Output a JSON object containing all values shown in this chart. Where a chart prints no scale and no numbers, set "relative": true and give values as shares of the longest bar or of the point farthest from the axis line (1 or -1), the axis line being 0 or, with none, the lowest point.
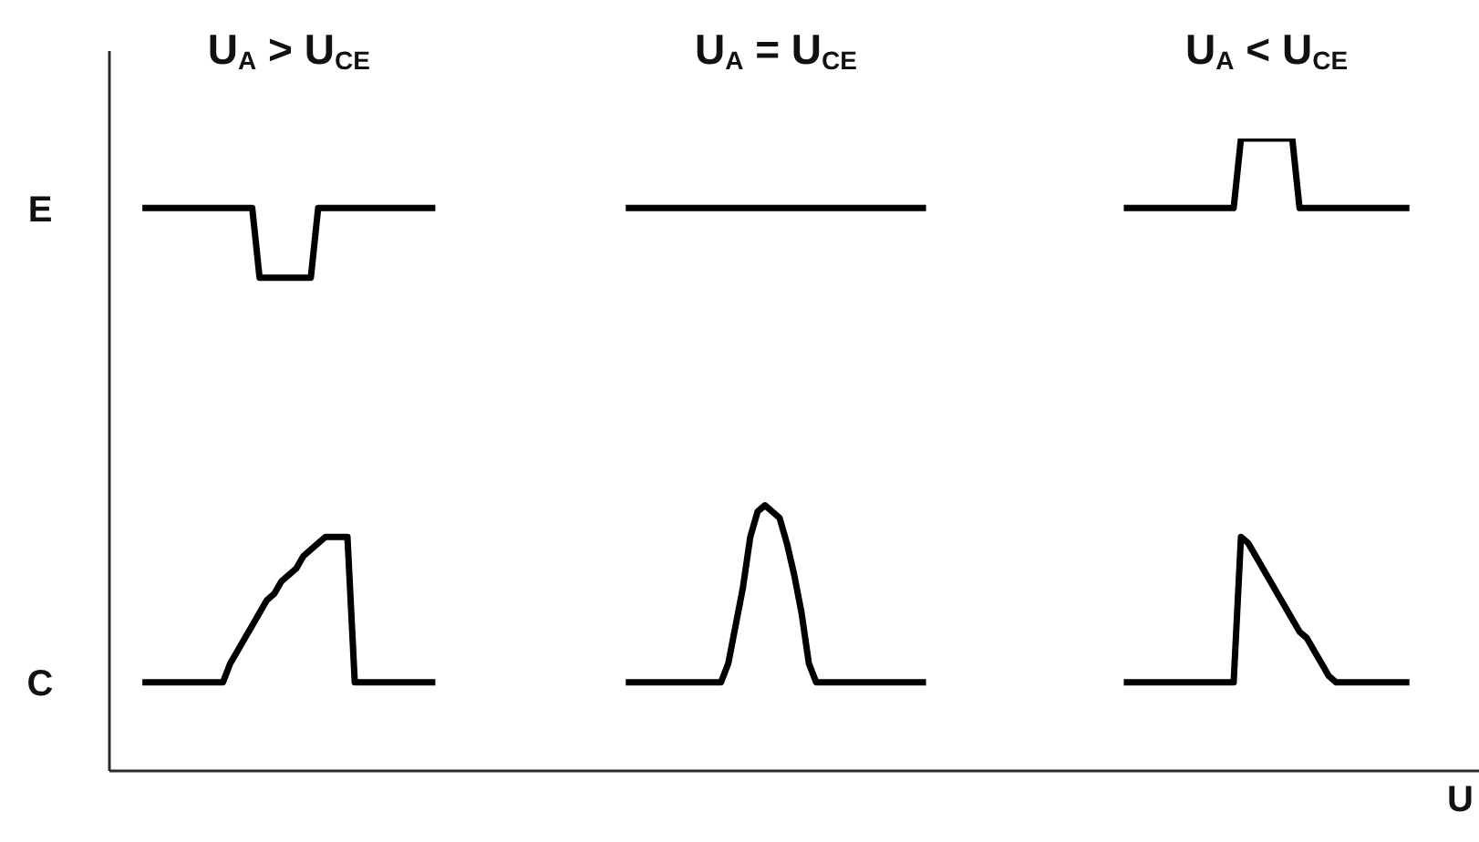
{
  "chart_data": {
    "type": "line",
    "relative": true,
    "xlabel": "U",
    "marker": "none",
    "line_style": "solid",
    "annotations": [
      "U$_{A}$ > U$_{CE}$",
      "U$_{A}$ = U$_{CE}$",
      "U$_{A}$ < U$_{CE}$"
    ],
    "categories": [
      null,
      null,
      null,
      null,
      null,
      null,
      null,
      null,
      null,
      null,
      null,
      null,
      null,
      null,
      null,
      null,
      null,
      null,
      null,
      null,
      null,
      null,
      null,
      null,
      null,
      null,
      null,
      null,
      null,
      null,
      null,
      null,
      null,
      null,
      null,
      null,
      null,
      null,
      null,
      null,
      null,
      null,
      null,
      null,
      null,
      null,
      null,
      null,
      null,
      null,
      null,
      null,
      null,
      null,
      null,
      null,
      null,
      null,
      null,
      null,
      null,
      null,
      null,
      null,
      null,
      null,
      null,
      null,
      null,
      null,
      null,
      null,
      null,
      null,
      null,
      null,
      null,
      null,
      null,
      null,
      null,
      null,
      null,
      null,
      null,
      null,
      null,
      null,
      null,
      null,
      null,
      null,
      null,
      null,
      null,
      null,
      null,
      null,
      null,
      null,
      null,
      null,
      null,
      null,
      null,
      null,
      null,
      null,
      null,
      null,
      null,
      null,
      null,
      null,
      null,
      null,
      null,
      null,
      null,
      null,
      null,
      null,
      null,
      null,
      null,
      null,
      null,
      null,
      null,
      null,
      null,
      null,
      null,
      null,
      null,
      null,
      null,
      null,
      null,
      null,
      null,
      null,
      null,
      null,
      null,
      null,
      null,
      null,
      null,
      null,
      null,
      null,
      null,
      null,
      null,
      null,
      null,
      null,
      null,
      null,
      null,
      null,
      null,
      null,
      null,
      null,
      null,
      null,
      null,
      null,
      null,
      null,
      null,
      null,
      null,
      null,
      null,
      null,
      null,
      null,
      null,
      null,
      null,
      null,
      null,
      null,
      null
    ],
    "series": [
      {
        "name": "E",
        "color": "#000000",
        "values": [
          null,
          null,
          null,
          null,
          0.89,
          0.89,
          0.89,
          0.89,
          0.89,
          0.89,
          0.89,
          0.89,
          0.89,
          0.89,
          0.89,
          0.89,
          0.89,
          0.89,
          0.89,
          0.89,
          0.78,
          0.78,
          0.78,
          0.78,
          0.78,
          0.78,
          0.78,
          0.78,
          0.89,
          0.89,
          0.89,
          0.89,
          0.89,
          0.89,
          0.89,
          0.89,
          0.89,
          0.89,
          0.89,
          0.89,
          0.89,
          0.89,
          0.89,
          0.89,
          0.89,
          null,
          null,
          null,
          null,
          null,
          null,
          null,
          null,
          null,
          null,
          null,
          null,
          null,
          null,
          null,
          null,
          null,
          null,
          null,
          null,
          null,
          null,
          null,
          null,
          null,
          null,
          null,
          null,
          null,
          null,
          null,
          null,
          null,
          null,
          null,
          null,
          null,
          null,
          null,
          null,
          null,
          null,
          null,
          null,
          null,
          null,
          null,
          null,
          null,
          null,
          null,
          null,
          null,
          null,
          null,
          null,
          null,
          null,
          null,
          null,
          null,
          null,
          null,
          null,
          null,
          null,
          null,
          null,
          null,
          null,
          null,
          null,
          null,
          null,
          null,
          null,
          null,
          null,
          null,
          null,
          null,
          null,
          null,
          null,
          null,
          null,
          null,
          null,
          null,
          null,
          null,
          null,
          null,
          null,
          null,
          null,
          null,
          null,
          null,
          null,
          null,
          null,
          null,
          null,
          null,
          null,
          null,
          null,
          null,
          null,
          null,
          null,
          null,
          null,
          null,
          null,
          null,
          null,
          null,
          null,
          null,
          null,
          null,
          null,
          null,
          null,
          null,
          null,
          null,
          null,
          null,
          null,
          null,
          null,
          null,
          null,
          null,
          null,
          null,
          null,
          null,
          null
        ]
      },
      {
        "color": "#000000",
        "values": [
          null,
          null,
          null,
          null,
          null,
          null,
          null,
          null,
          null,
          null,
          null,
          null,
          null,
          null,
          null,
          null,
          null,
          null,
          null,
          null,
          null,
          null,
          null,
          null,
          null,
          null,
          null,
          null,
          null,
          null,
          null,
          null,
          null,
          null,
          null,
          null,
          null,
          null,
          null,
          null,
          null,
          null,
          null,
          null,
          null,
          null,
          null,
          null,
          null,
          null,
          null,
          null,
          null,
          null,
          null,
          null,
          null,
          null,
          null,
          null,
          null,
          null,
          null,
          null,
          null,
          null,
          null,
          null,
          null,
          null,
          0.89,
          0.89,
          0.89,
          0.89,
          0.89,
          0.89,
          0.89,
          0.89,
          0.89,
          0.89,
          0.89,
          0.89,
          0.89,
          0.89,
          0.89,
          0.89,
          0.89,
          0.89,
          0.89,
          0.89,
          0.89,
          0.89,
          0.89,
          0.89,
          0.89,
          0.89,
          0.89,
          0.89,
          0.89,
          0.89,
          0.89,
          0.89,
          0.89,
          0.89,
          0.89,
          0.89,
          0.89,
          0.89,
          0.89,
          0.89,
          0.89,
          0.89,
          null,
          null,
          null,
          null,
          null,
          null,
          null,
          null,
          null,
          null,
          null,
          null,
          null,
          null,
          null,
          null,
          null,
          null,
          null,
          null,
          null,
          null,
          null,
          null,
          null,
          null,
          null,
          null,
          null,
          null,
          null,
          null,
          null,
          null,
          null,
          null,
          null,
          null,
          null,
          null,
          null,
          null,
          null,
          null,
          null,
          null,
          null,
          null,
          null,
          null,
          null,
          null,
          null,
          null,
          null,
          null,
          null,
          null,
          null,
          null,
          null,
          null,
          null,
          null,
          null,
          null,
          null,
          null,
          null,
          null,
          null,
          null,
          null,
          null,
          null
        ]
      },
      {
        "color": "#000000",
        "values": [
          null,
          null,
          null,
          null,
          null,
          null,
          null,
          null,
          null,
          null,
          null,
          null,
          null,
          null,
          null,
          null,
          null,
          null,
          null,
          null,
          null,
          null,
          null,
          null,
          null,
          null,
          null,
          null,
          null,
          null,
          null,
          null,
          null,
          null,
          null,
          null,
          null,
          null,
          null,
          null,
          null,
          null,
          null,
          null,
          null,
          null,
          null,
          null,
          null,
          null,
          null,
          null,
          null,
          null,
          null,
          null,
          null,
          null,
          null,
          null,
          null,
          null,
          null,
          null,
          null,
          null,
          null,
          null,
          null,
          null,
          null,
          null,
          null,
          null,
          null,
          null,
          null,
          null,
          null,
          null,
          null,
          null,
          null,
          null,
          null,
          null,
          null,
          null,
          null,
          null,
          null,
          null,
          null,
          null,
          null,
          null,
          null,
          null,
          null,
          null,
          null,
          null,
          null,
          null,
          null,
          null,
          null,
          null,
          null,
          null,
          null,
          null,
          null,
          null,
          null,
          null,
          null,
          null,
          null,
          null,
          null,
          null,
          null,
          null,
          null,
          null,
          null,
          null,
          null,
          null,
          null,
          null,
          null,
          null,
          null,
          null,
          null,
          null,
          0.89,
          0.89,
          0.89,
          0.89,
          0.89,
          0.89,
          0.89,
          0.89,
          0.89,
          0.89,
          0.89,
          0.89,
          0.89,
          0.89,
          0.89,
          0.89,
          1,
          1,
          1,
          1,
          1,
          1,
          1,
          1,
          0.89,
          0.89,
          0.89,
          0.89,
          0.89,
          0.89,
          0.89,
          0.89,
          0.89,
          0.89,
          0.89,
          0.89,
          0.89,
          0.89,
          0.89,
          0.89,
          null,
          null,
          null,
          null,
          null,
          null,
          null,
          null,
          null
        ]
      },
      {
        "name": "C",
        "color": "#000000",
        "values": [
          null,
          null,
          null,
          null,
          0.14,
          0.14,
          0.14,
          0.14,
          0.14,
          0.14,
          0.14,
          0.14,
          0.14,
          0.14,
          0.14,
          0.14,
          0.17,
          0.19,
          0.21,
          0.23,
          0.25,
          0.27,
          0.28,
          0.3,
          0.31,
          0.32,
          0.34,
          0.35,
          0.36,
          0.37,
          0.37,
          0.37,
          0.37,
          0.14,
          0.14,
          0.14,
          0.14,
          0.14,
          0.14,
          0.14,
          0.14,
          0.14,
          0.14,
          0.14,
          0.14,
          null,
          null,
          null,
          null,
          null,
          null,
          null,
          null,
          null,
          null,
          null,
          null,
          null,
          null,
          null,
          null,
          null,
          null,
          null,
          null,
          null,
          null,
          null,
          null,
          null,
          null,
          null,
          null,
          null,
          null,
          null,
          null,
          null,
          null,
          null,
          null,
          null,
          null,
          null,
          null,
          null,
          null,
          null,
          null,
          null,
          null,
          null,
          null,
          null,
          null,
          null,
          null,
          null,
          null,
          null,
          null,
          null,
          null,
          null,
          null,
          null,
          null,
          null,
          null,
          null,
          null,
          null,
          null,
          null,
          null,
          null,
          null,
          null,
          null,
          null,
          null,
          null,
          null,
          null,
          null,
          null,
          null,
          null,
          null,
          null,
          null,
          null,
          null,
          null,
          null,
          null,
          null,
          null,
          null,
          null,
          null,
          null,
          null,
          null,
          null,
          null,
          null,
          null,
          null,
          null,
          null,
          null,
          null,
          null,
          null,
          null,
          null,
          null,
          null,
          null,
          null,
          null,
          null,
          null,
          null,
          null,
          null,
          null,
          null,
          null,
          null,
          null,
          null,
          null,
          null,
          null,
          null,
          null,
          null,
          null,
          null,
          null,
          null,
          null,
          null,
          null,
          null
        ]
      },
      {
        "color": "#000000",
        "values": [
          null,
          null,
          null,
          null,
          null,
          null,
          null,
          null,
          null,
          null,
          null,
          null,
          null,
          null,
          null,
          null,
          null,
          null,
          null,
          null,
          null,
          null,
          null,
          null,
          null,
          null,
          null,
          null,
          null,
          null,
          null,
          null,
          null,
          null,
          null,
          null,
          null,
          null,
          null,
          null,
          null,
          null,
          null,
          null,
          null,
          null,
          null,
          null,
          null,
          null,
          null,
          null,
          null,
          null,
          null,
          null,
          null,
          null,
          null,
          null,
          null,
          null,
          null,
          null,
          null,
          null,
          null,
          null,
          null,
          null,
          0.14,
          0.14,
          0.14,
          0.14,
          0.14,
          0.14,
          0.14,
          0.14,
          0.14,
          0.14,
          0.14,
          0.14,
          0.14,
          0.14,
          0.17,
          0.23,
          0.29,
          0.37,
          0.41,
          0.42,
          0.41,
          0.4,
          0.36,
          0.31,
          0.25,
          0.17,
          0.14,
          0.14,
          0.14,
          0.14,
          0.14,
          0.14,
          0.14,
          0.14,
          0.14,
          0.14,
          0.14,
          0.14,
          0.14,
          0.14,
          0.14,
          0.14,
          null,
          null,
          null,
          null,
          null,
          null,
          null,
          null,
          null,
          null,
          null,
          null,
          null,
          null,
          null,
          null,
          null,
          null,
          null,
          null,
          null,
          null,
          null,
          null,
          null,
          null,
          null,
          null,
          null,
          null,
          null,
          null,
          null,
          null,
          null,
          null,
          null,
          null,
          null,
          null,
          null,
          null,
          null,
          null,
          null,
          null,
          null,
          null,
          null,
          null,
          null,
          null,
          null,
          null,
          null,
          null,
          null,
          null,
          null,
          null,
          null,
          null,
          null,
          null,
          null,
          null,
          null,
          null,
          null,
          null,
          null,
          null,
          null,
          null,
          null
        ]
      },
      {
        "color": "#000000",
        "values": [
          null,
          null,
          null,
          null,
          null,
          null,
          null,
          null,
          null,
          null,
          null,
          null,
          null,
          null,
          null,
          null,
          null,
          null,
          null,
          null,
          null,
          null,
          null,
          null,
          null,
          null,
          null,
          null,
          null,
          null,
          null,
          null,
          null,
          null,
          null,
          null,
          null,
          null,
          null,
          null,
          null,
          null,
          null,
          null,
          null,
          null,
          null,
          null,
          null,
          null,
          null,
          null,
          null,
          null,
          null,
          null,
          null,
          null,
          null,
          null,
          null,
          null,
          null,
          null,
          null,
          null,
          null,
          null,
          null,
          null,
          null,
          null,
          null,
          null,
          null,
          null,
          null,
          null,
          null,
          null,
          null,
          null,
          null,
          null,
          null,
          null,
          null,
          null,
          null,
          null,
          null,
          null,
          null,
          null,
          null,
          null,
          null,
          null,
          null,
          null,
          null,
          null,
          null,
          null,
          null,
          null,
          null,
          null,
          null,
          null,
          null,
          null,
          null,
          null,
          null,
          null,
          null,
          null,
          null,
          null,
          null,
          null,
          null,
          null,
          null,
          null,
          null,
          null,
          null,
          null,
          null,
          null,
          null,
          null,
          null,
          null,
          null,
          null,
          0.14,
          0.14,
          0.14,
          0.14,
          0.14,
          0.14,
          0.14,
          0.14,
          0.14,
          0.14,
          0.14,
          0.14,
          0.14,
          0.14,
          0.14,
          0.14,
          0.37,
          0.36,
          0.34,
          0.32,
          0.3,
          0.28,
          0.26,
          0.24,
          0.22,
          0.21,
          0.19,
          0.17,
          0.15,
          0.14,
          0.14,
          0.14,
          0.14,
          0.14,
          0.14,
          0.14,
          0.14,
          0.14,
          0.14,
          0.14,
          null,
          null,
          null,
          null,
          null,
          null,
          null,
          null,
          null
        ]
      }
    ]
  }
}
